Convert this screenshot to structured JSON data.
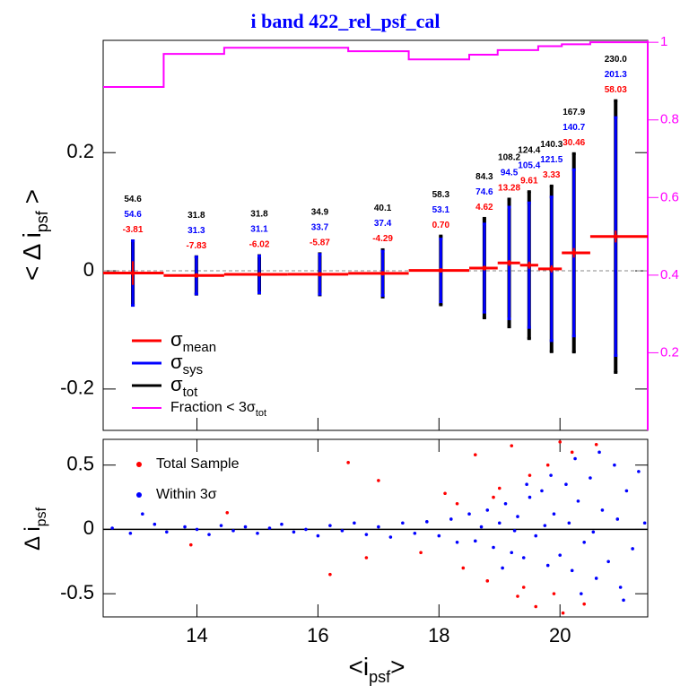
{
  "chart_data": [
    {
      "type": "errorbar",
      "title": "i band 422_rel_psf_cal",
      "ylabel": {
        "text": "< Δ i",
        "sub": "psf",
        "tail": " >"
      },
      "x": [
        12.94,
        13.99,
        15.03,
        16.03,
        17.07,
        18.03,
        18.75,
        19.16,
        19.49,
        19.86,
        20.23,
        20.92
      ],
      "bin_edges": [
        12.45,
        13.45,
        14.45,
        15.5,
        16.5,
        17.5,
        18.5,
        18.97,
        19.34,
        19.64,
        20.03,
        20.5,
        21.45
      ],
      "mean": {
        "color": "#ff0000",
        "values": [
          -0.00381,
          -0.00783,
          -0.00602,
          -0.00587,
          -0.00429,
          0.0007,
          0.00462,
          0.01328,
          0.00961,
          0.00333,
          0.03046,
          0.05803
        ],
        "value_labels": [
          "-3.81",
          "-7.83",
          "-6.02",
          "-5.87",
          "-4.29",
          "0.70",
          "4.62",
          "13.28",
          "9.61",
          "3.33",
          "30.46",
          "58.03"
        ]
      },
      "sigma_tot": {
        "color": "#000000",
        "values": [
          0.0546,
          0.0318,
          0.0318,
          0.0349,
          0.0401,
          0.0583,
          0.0843,
          0.1082,
          0.1244,
          0.1403,
          0.1679,
          0.23
        ],
        "value_labels": [
          "54.6",
          "31.8",
          "31.8",
          "34.9",
          "40.1",
          "58.3",
          "84.3",
          "108.2",
          "124.4",
          "140.3",
          "167.9",
          "230.0"
        ]
      },
      "sigma_sys": {
        "color": "#0000ff",
        "values": [
          0.0546,
          0.0313,
          0.0311,
          0.0337,
          0.0374,
          0.0531,
          0.0746,
          0.0945,
          0.1054,
          0.1215,
          0.1407,
          0.2013
        ],
        "value_labels": [
          "54.6",
          "31.3",
          "31.1",
          "33.7",
          "37.4",
          "53.1",
          "74.6",
          "94.5",
          "105.4",
          "121.5",
          "140.7",
          "201.3"
        ]
      },
      "sigma_mean": {
        "values": [
          0.02,
          0.002,
          0.002,
          0.002,
          0.003,
          0.003,
          0.004,
          0.005,
          0.006,
          0.006,
          0.008,
          0.01
        ]
      },
      "fraction": {
        "color": "#ff00ff",
        "axis": "y2",
        "values": [
          0.885,
          0.97,
          0.986,
          0.986,
          0.977,
          0.956,
          0.968,
          0.98,
          0.98,
          0.99,
          0.995,
          1.0
        ]
      },
      "legend": [
        {
          "label": "σ",
          "sub": "mean",
          "color": "#ff0000"
        },
        {
          "label": "σ",
          "sub": "sys",
          "color": "#0000ff"
        },
        {
          "label": "σ",
          "sub": "tot",
          "color": "#000000"
        },
        {
          "label": "Fraction < 3σ",
          "sub": "tot",
          "color": "#ff00ff"
        }
      ],
      "xlim": [
        12.45,
        21.45
      ],
      "xticks": [
        14,
        16,
        18,
        20
      ],
      "ylim": [
        -0.27,
        0.39
      ],
      "yticks": [
        -0.2,
        0,
        0.2
      ],
      "y2lim": [
        0,
        1.005
      ],
      "y2ticks": [
        0.2,
        0.4,
        0.6,
        0.8,
        1
      ]
    },
    {
      "type": "scatter",
      "ylabel": {
        "text": "Δ i",
        "sub": "psf"
      },
      "xlabel": {
        "text": "<i",
        "sub": "psf",
        "tail": ">"
      },
      "xlim": [
        12.45,
        21.45
      ],
      "xticks": [
        14,
        16,
        18,
        20
      ],
      "ylim": [
        -0.68,
        0.7
      ],
      "yticks": [
        -0.5,
        0,
        0.5
      ],
      "series": [
        {
          "name": "Total Sample",
          "color": "#ff0000",
          "x": [
            13.9,
            14.5,
            16.2,
            16.5,
            17.0,
            17.7,
            18.1,
            18.4,
            18.6,
            18.8,
            19.0,
            19.2,
            19.3,
            19.5,
            19.6,
            19.8,
            20.0,
            20.05,
            20.2,
            20.4,
            18.3,
            18.9,
            19.4,
            19.9,
            20.6,
            16.8
          ],
          "values": [
            -0.12,
            0.13,
            -0.35,
            0.52,
            0.38,
            -0.18,
            0.28,
            -0.3,
            0.58,
            -0.4,
            0.32,
            0.65,
            -0.52,
            0.42,
            -0.6,
            0.5,
            0.68,
            -0.65,
            0.6,
            -0.58,
            0.2,
            0.25,
            -0.45,
            -0.5,
            0.66,
            -0.22
          ]
        },
        {
          "name": "Within 3σ",
          "color": "#0000ff",
          "x": [
            12.6,
            12.9,
            13.1,
            13.3,
            13.5,
            13.8,
            14.0,
            14.2,
            14.4,
            14.6,
            14.8,
            15.0,
            15.2,
            15.4,
            15.6,
            15.8,
            16.0,
            16.2,
            16.4,
            16.6,
            16.8,
            17.0,
            17.2,
            17.4,
            17.6,
            17.8,
            18.0,
            18.2,
            18.3,
            18.5,
            18.6,
            18.8,
            18.9,
            19.0,
            19.1,
            19.2,
            19.3,
            19.4,
            19.5,
            19.6,
            19.7,
            19.8,
            19.9,
            20.0,
            20.1,
            20.2,
            20.3,
            20.4,
            20.5,
            20.6,
            20.7,
            20.8,
            20.9,
            21.0,
            21.1,
            21.2,
            21.3,
            21.4,
            19.05,
            19.45,
            19.85,
            20.25,
            20.65,
            21.05,
            20.35,
            18.7,
            19.25,
            19.75,
            20.15,
            20.55,
            20.95
          ],
          "values": [
            0.01,
            -0.03,
            0.12,
            0.04,
            -0.02,
            0.02,
            0.0,
            -0.04,
            0.03,
            -0.01,
            0.02,
            -0.03,
            0.01,
            0.04,
            -0.02,
            0.0,
            -0.05,
            0.03,
            -0.01,
            0.05,
            -0.04,
            0.02,
            -0.06,
            0.05,
            -0.03,
            0.06,
            -0.05,
            0.08,
            -0.1,
            0.12,
            -0.09,
            0.15,
            -0.14,
            0.05,
            0.2,
            -0.18,
            0.1,
            -0.22,
            0.25,
            -0.05,
            0.3,
            -0.28,
            0.12,
            -0.2,
            0.35,
            -0.32,
            0.22,
            -0.1,
            0.4,
            -0.38,
            0.15,
            -0.25,
            0.5,
            -0.45,
            0.3,
            -0.15,
            0.45,
            0.05,
            -0.3,
            0.35,
            0.42,
            0.55,
            0.6,
            -0.55,
            -0.5,
            0.02,
            -0.01,
            0.03,
            0.05,
            -0.02,
            0.08
          ]
        }
      ]
    }
  ]
}
